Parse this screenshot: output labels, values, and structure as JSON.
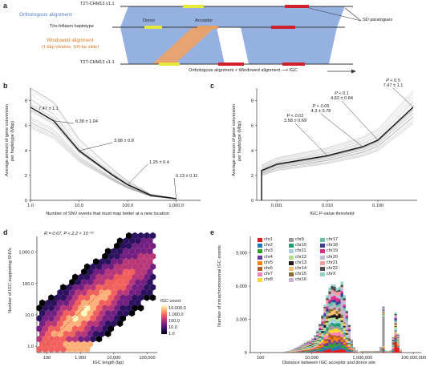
{
  "panel_a": {
    "label": "a",
    "track_top": "T2T-CHM13 v1.1",
    "track_mid": "Trio-hifiasm haplotype",
    "track_bottom": "T2T-CHM13 v1.1",
    "orthologous": "Orthologous alignment",
    "windowed_line1": "Windowed alignment",
    "windowed_line2": "(1-kbp window, 100-bp slide)",
    "donor": "Donor",
    "acceptor": "Acceptor",
    "sd": "SD paralogues",
    "equation": "Orthologous alignment + Windowed alignment ⟶ IGC",
    "colors": {
      "blue": "#8aa8df",
      "orange": "#f4a25e",
      "yellow": "#e8e83c",
      "red": "#d0202a"
    }
  },
  "panel_b": {
    "label": "b",
    "ylabel_1": "Average amount of gene conversion",
    "ylabel_2": "per haplotype (Mbp)",
    "xlabel": "Number of SNV events that must map better at a new location",
    "annotations": [
      "7.47 ± 1.1",
      "6.38 ± 1.04",
      "3.98 ± 0.8",
      "1.25 ± 0.4",
      "0.13 ± 0.11"
    ],
    "chart_data": {
      "type": "line",
      "x_scale": "log",
      "xticks": [
        "1.0",
        "10.0",
        "100.0",
        "1,000.0"
      ],
      "yticks": [
        "0",
        "2",
        "4",
        "6",
        "8"
      ],
      "ylim": [
        0,
        9
      ],
      "series": [
        {
          "x": [
            1,
            3,
            10,
            50,
            100,
            300,
            1000
          ],
          "values": [
            7.47,
            6.38,
            3.98,
            2.0,
            1.25,
            0.4,
            0.13
          ]
        }
      ]
    }
  },
  "panel_c": {
    "label": "c",
    "ylabel_1": "Average amount of gene conversion",
    "ylabel_2": "per haplotype (Mbp)",
    "xlabel": "IGC P-value threshold",
    "annotations": [
      {
        "p": "P < 0.01",
        "v": "3.58 ± 0.69"
      },
      {
        "p": "P < 0.05",
        "v": "4.3 ± 0.78"
      },
      {
        "p": "P < 0.1",
        "v": "4.83 ± 0.84"
      },
      {
        "p": "P < 0.5",
        "v": "7.47 ± 1.1"
      }
    ],
    "chart_data": {
      "type": "line",
      "x_scale": "log",
      "xticks": [
        "0.001",
        "0.010",
        "0.100"
      ],
      "yticks": [
        "0",
        "2",
        "4",
        "6",
        "8"
      ],
      "ylim": [
        0,
        9
      ],
      "series": [
        {
          "x": [
            0.0005,
            0.001,
            0.01,
            0.05,
            0.1,
            0.5
          ],
          "values": [
            2.4,
            2.9,
            3.58,
            4.3,
            4.83,
            7.47
          ]
        }
      ]
    }
  },
  "panel_d": {
    "label": "d",
    "stat": "R = 0.67, P < 2.2 × 10⁻¹⁶",
    "ylabel": "Number of IGC-supporting SNVs",
    "xlabel": "IGC length (bp)",
    "legend_title": "IGC count",
    "legend_values": [
      "10,000.0",
      "1,000.0",
      "100.0",
      "10.0",
      "1.0"
    ],
    "chart_data": {
      "type": "heatmap",
      "x_scale": "log",
      "y_scale": "log",
      "xticks": [
        "100",
        "1,000",
        "10,000",
        "100,000"
      ],
      "yticks": [
        "1.0",
        "10.0",
        "100.0",
        "1,000.0"
      ]
    }
  },
  "panel_e": {
    "label": "e",
    "ylabel": "Number of intrachromosomal IGC events",
    "xlabel": "Distance between IGC acceptor and donor site",
    "chromosomes": [
      {
        "name": "chr1",
        "color": "#e31a1c"
      },
      {
        "name": "chr2",
        "color": "#1f78b4"
      },
      {
        "name": "chr3",
        "color": "#33a02c"
      },
      {
        "name": "chr4",
        "color": "#6a3d9a"
      },
      {
        "name": "chr5",
        "color": "#ff7f00"
      },
      {
        "name": "chr6",
        "color": "#b15928"
      },
      {
        "name": "chr7",
        "color": "#f781bf"
      },
      {
        "name": "chr8",
        "color": "#ffd92f"
      },
      {
        "name": "chr9",
        "color": "#999999"
      },
      {
        "name": "chr10",
        "color": "#1b9e77"
      },
      {
        "name": "chr11",
        "color": "#a6cee3"
      },
      {
        "name": "chr12",
        "color": "#b2df8a"
      },
      {
        "name": "chr13",
        "color": "#1a1a1a"
      },
      {
        "name": "chr14",
        "color": "#fdbf6f"
      },
      {
        "name": "chr15",
        "color": "#8c6d31"
      },
      {
        "name": "chr16",
        "color": "#cab2d6"
      },
      {
        "name": "chr17",
        "color": "#66c2a5"
      },
      {
        "name": "chr18",
        "color": "#3b3b98"
      },
      {
        "name": "chr19",
        "color": "#e7298a"
      },
      {
        "name": "chr20",
        "color": "#bebada"
      },
      {
        "name": "chr21",
        "color": "#fb9a99"
      },
      {
        "name": "chr22",
        "color": "#4d4d4d"
      },
      {
        "name": "chrX",
        "color": "#8dd3c7"
      }
    ],
    "chart_data": {
      "type": "bar",
      "x_scale": "log",
      "xticks": [
        "100",
        "10,000",
        "1,000,000",
        "100,000,000"
      ],
      "yticks": [
        "0",
        "3,000",
        "6,000",
        "9,000"
      ],
      "ylim": [
        0,
        10500
      ]
    }
  }
}
